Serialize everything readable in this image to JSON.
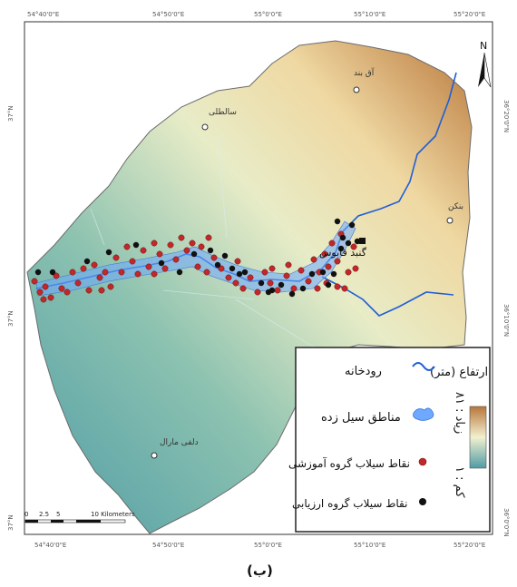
{
  "coords": {
    "top": [
      "54°40'0\"E",
      "54°50'0\"E",
      "55°0'0\"E",
      "55°10'0\"E",
      "55°20'0\"E"
    ],
    "bottom": [
      "54°40'0\"E",
      "54°50'0\"E",
      "55°0'0\"E",
      "55°10'0\"E",
      "55°20'0\"E"
    ],
    "left": [
      "37°N",
      "37°N",
      "37°N"
    ],
    "right": [
      "36°20'0\"N",
      "36°10'0\"N",
      "36°0'0\"N"
    ]
  },
  "north_label": "N",
  "towns": {
    "aq_band": "آق بند",
    "saltoli": "سالطلی",
    "ankhon": "بنکن",
    "dalli_maral": "دلفی مارال",
    "gonbad": "گنبد قابوس"
  },
  "scale": {
    "ticks": [
      "0",
      "2.5",
      "5",
      "10 Kilometers"
    ]
  },
  "legend": {
    "elevation_title": "ارتفاع (متر)",
    "elevation_high": "زیاد : ۸۱",
    "elevation_low": "کم : ۱",
    "river": "رودخانه",
    "flooded": "مناطق سیل زده",
    "training_points": "نقاط سیلاب گروه آموزشی",
    "validation_points": "نقاط سیلاب گروه ارزیابی"
  },
  "colors": {
    "river": "#1f5fd6",
    "flooded": "#6ea8ff",
    "training_point": "#c0282a",
    "validation_point": "#111111",
    "elev_high": "#b8763a",
    "elev_mid": "#f2f0cf",
    "elev_low": "#4f9ca6"
  },
  "caption": "(ب)"
}
